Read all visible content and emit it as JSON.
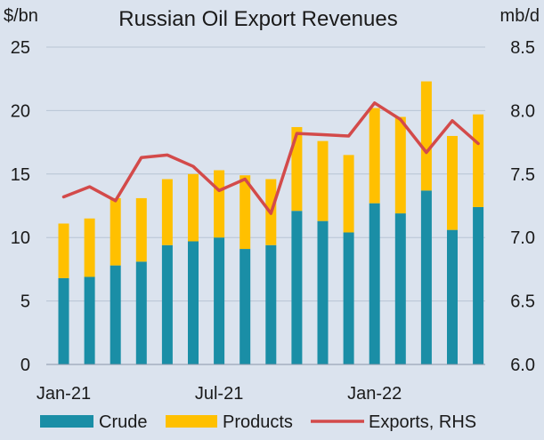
{
  "chart_data": {
    "type": "bar",
    "title": "Russian Oil Export Revenues",
    "y_left_unit": "$/bn",
    "y_right_unit": "mb/d",
    "x_tick_labels": [
      "Jan-21",
      "Jul-21",
      "Jan-22"
    ],
    "categories": [
      "Jan-21",
      "Feb-21",
      "Mar-21",
      "Apr-21",
      "May-21",
      "Jun-21",
      "Jul-21",
      "Aug-21",
      "Sep-21",
      "Oct-21",
      "Nov-21",
      "Dec-21",
      "Jan-22",
      "Feb-22",
      "Mar-22",
      "Apr-22",
      "May-22"
    ],
    "y_left_ticks": [
      "0",
      "5",
      "10",
      "15",
      "20",
      "25"
    ],
    "y_right_ticks": [
      "6.0",
      "6.5",
      "7.0",
      "7.5",
      "8.0",
      "8.5"
    ],
    "ylim_left": [
      0,
      25
    ],
    "ylim_right": [
      6.0,
      8.5
    ],
    "stacked": true,
    "series": [
      {
        "name": "Crude",
        "type": "bar",
        "axis": "left",
        "color": "#1a8ea6",
        "values": [
          6.8,
          6.9,
          7.8,
          8.1,
          9.4,
          9.7,
          10.0,
          9.1,
          9.4,
          12.1,
          11.3,
          10.4,
          12.7,
          11.9,
          13.7,
          10.6,
          12.4
        ]
      },
      {
        "name": "Products",
        "type": "bar",
        "axis": "left",
        "color": "#ffc000",
        "values": [
          4.3,
          4.6,
          5.3,
          5.0,
          5.2,
          5.3,
          5.3,
          5.8,
          5.2,
          6.6,
          6.3,
          6.1,
          7.5,
          7.6,
          8.6,
          7.4,
          7.3
        ]
      },
      {
        "name": "Exports, RHS",
        "type": "line",
        "axis": "right",
        "color": "#d34a4a",
        "values": [
          7.32,
          7.4,
          7.29,
          7.63,
          7.65,
          7.56,
          7.37,
          7.46,
          7.19,
          7.82,
          7.81,
          7.8,
          8.06,
          7.93,
          7.67,
          7.92,
          7.74
        ]
      }
    ],
    "legend_position": "bottom",
    "grid": "horizontal"
  }
}
